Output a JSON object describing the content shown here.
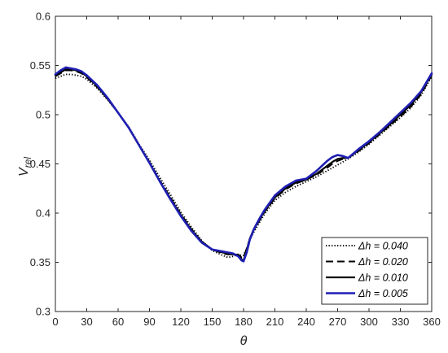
{
  "chart_data": {
    "type": "line",
    "xlabel": "θ",
    "ylabel": "V",
    "ylabel_sub": "rel",
    "xlim": [
      0,
      360
    ],
    "ylim": [
      0.3,
      0.6
    ],
    "xticks": [
      0,
      30,
      60,
      90,
      120,
      150,
      180,
      210,
      240,
      270,
      300,
      330,
      360
    ],
    "yticks": [
      "0.3",
      "0.35",
      "0.4",
      "0.45",
      "0.5",
      "0.55",
      "0.6"
    ],
    "grid": false,
    "legend_position": "bottom-right",
    "series": [
      {
        "name": "Δh = 0.040",
        "color": "#000000",
        "style": "dotted",
        "x": [
          0,
          5,
          10,
          15,
          20,
          25,
          30,
          40,
          50,
          60,
          70,
          80,
          90,
          100,
          110,
          120,
          130,
          140,
          150,
          160,
          165,
          170,
          175,
          178,
          180,
          183,
          186,
          190,
          195,
          200,
          210,
          220,
          230,
          240,
          250,
          260,
          265,
          270,
          275,
          280,
          290,
          300,
          310,
          320,
          330,
          340,
          350,
          360
        ],
        "y": [
          0.537,
          0.539,
          0.541,
          0.541,
          0.54,
          0.539,
          0.536,
          0.527,
          0.515,
          0.502,
          0.488,
          0.47,
          0.454,
          0.436,
          0.419,
          0.401,
          0.386,
          0.372,
          0.362,
          0.357,
          0.355,
          0.356,
          0.358,
          0.357,
          0.357,
          0.364,
          0.373,
          0.381,
          0.39,
          0.399,
          0.413,
          0.421,
          0.427,
          0.432,
          0.437,
          0.443,
          0.446,
          0.449,
          0.452,
          0.455,
          0.462,
          0.47,
          0.479,
          0.488,
          0.497,
          0.507,
          0.52,
          0.539
        ]
      },
      {
        "name": "Δh = 0.020",
        "color": "#000000",
        "style": "dashed",
        "x": [
          0,
          5,
          10,
          15,
          20,
          25,
          30,
          40,
          50,
          60,
          70,
          80,
          90,
          100,
          110,
          120,
          130,
          140,
          150,
          160,
          165,
          170,
          175,
          178,
          180,
          183,
          186,
          190,
          195,
          200,
          210,
          220,
          230,
          240,
          250,
          260,
          265,
          270,
          275,
          280,
          290,
          300,
          310,
          320,
          330,
          340,
          350,
          360
        ],
        "y": [
          0.539,
          0.542,
          0.545,
          0.545,
          0.544,
          0.542,
          0.538,
          0.528,
          0.516,
          0.502,
          0.487,
          0.469,
          0.452,
          0.433,
          0.416,
          0.399,
          0.384,
          0.371,
          0.363,
          0.359,
          0.358,
          0.358,
          0.358,
          0.355,
          0.355,
          0.364,
          0.374,
          0.383,
          0.392,
          0.401,
          0.415,
          0.424,
          0.43,
          0.434,
          0.439,
          0.446,
          0.45,
          0.453,
          0.455,
          0.456,
          0.463,
          0.471,
          0.48,
          0.489,
          0.498,
          0.508,
          0.521,
          0.54
        ]
      },
      {
        "name": "Δh = 0.010",
        "color": "#000000",
        "style": "solid",
        "x": [
          0,
          5,
          10,
          15,
          20,
          25,
          30,
          40,
          50,
          60,
          70,
          80,
          90,
          100,
          110,
          120,
          130,
          140,
          150,
          160,
          165,
          170,
          175,
          178,
          180,
          183,
          186,
          190,
          195,
          200,
          210,
          220,
          230,
          240,
          250,
          260,
          265,
          270,
          275,
          280,
          290,
          300,
          310,
          320,
          330,
          340,
          350,
          360
        ],
        "y": [
          0.54,
          0.543,
          0.546,
          0.546,
          0.545,
          0.543,
          0.539,
          0.529,
          0.516,
          0.502,
          0.487,
          0.469,
          0.451,
          0.432,
          0.415,
          0.398,
          0.383,
          0.371,
          0.363,
          0.36,
          0.359,
          0.358,
          0.357,
          0.353,
          0.352,
          0.362,
          0.374,
          0.384,
          0.393,
          0.402,
          0.416,
          0.425,
          0.431,
          0.434,
          0.44,
          0.448,
          0.452,
          0.455,
          0.456,
          0.456,
          0.464,
          0.472,
          0.481,
          0.49,
          0.5,
          0.51,
          0.523,
          0.541
        ]
      },
      {
        "name": "Δh = 0.005",
        "color": "#1f1fb4",
        "style": "solid",
        "x": [
          0,
          5,
          10,
          15,
          20,
          25,
          30,
          40,
          50,
          60,
          70,
          80,
          90,
          100,
          110,
          120,
          130,
          140,
          150,
          160,
          165,
          170,
          175,
          178,
          180,
          183,
          186,
          190,
          195,
          200,
          210,
          220,
          230,
          240,
          250,
          260,
          265,
          270,
          275,
          280,
          290,
          300,
          310,
          320,
          330,
          340,
          350,
          360
        ],
        "y": [
          0.541,
          0.545,
          0.548,
          0.547,
          0.546,
          0.544,
          0.54,
          0.53,
          0.517,
          0.502,
          0.487,
          0.469,
          0.451,
          0.432,
          0.414,
          0.397,
          0.382,
          0.37,
          0.363,
          0.361,
          0.36,
          0.359,
          0.356,
          0.352,
          0.351,
          0.36,
          0.373,
          0.384,
          0.394,
          0.403,
          0.418,
          0.427,
          0.433,
          0.435,
          0.443,
          0.453,
          0.457,
          0.459,
          0.458,
          0.456,
          0.465,
          0.473,
          0.482,
          0.492,
          0.502,
          0.512,
          0.524,
          0.542
        ]
      }
    ]
  }
}
